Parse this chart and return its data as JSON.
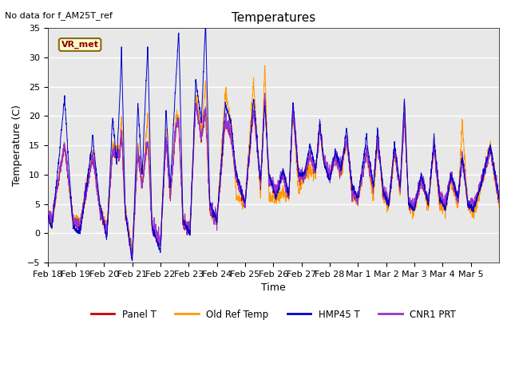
{
  "title": "Temperatures",
  "xlabel": "Time",
  "ylabel": "Temperature (C)",
  "ylim": [
    -5,
    35
  ],
  "yticks": [
    -5,
    0,
    5,
    10,
    15,
    20,
    25,
    30,
    35
  ],
  "annotation_text": "No data for f_AM25T_ref",
  "box_label": "VR_met",
  "legend_labels": [
    "Panel T",
    "Old Ref Temp",
    "HMP45 T",
    "CNR1 PRT"
  ],
  "line_colors": [
    "#cc0000",
    "#ff9900",
    "#0000cc",
    "#9933cc"
  ],
  "background_color": "#e8e8e8",
  "xtick_labels": [
    "Feb 18",
    "Feb 19",
    "Feb 20",
    "Feb 21",
    "Feb 22",
    "Feb 23",
    "Feb 24",
    "Feb 25",
    "Feb 26",
    "Feb 27",
    "Feb 28",
    "Mar 1",
    "Mar 2",
    "Mar 3",
    "Mar 4",
    "Mar 5"
  ],
  "num_points": 3000
}
